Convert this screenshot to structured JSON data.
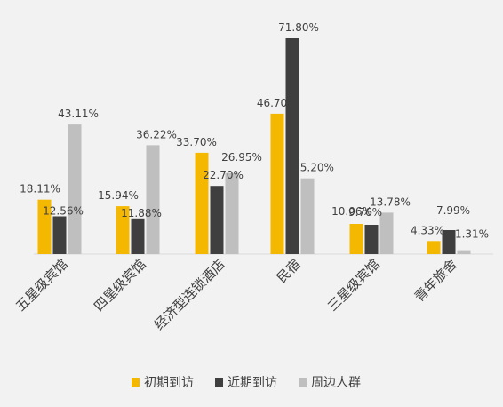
{
  "chart_data": {
    "type": "bar",
    "categories": [
      "五星级宾馆",
      "四星级宾馆",
      "经济型连锁酒店",
      "民宿",
      "三星级宾馆",
      "青年旅舍"
    ],
    "series": [
      {
        "name": "初期到访",
        "color": "#f5b800",
        "values": [
          18.11,
          15.94,
          33.7,
          46.7,
          10.06,
          4.33
        ],
        "labels": [
          "18.11%",
          "15.94%",
          "33.70%",
          "46.70",
          "10.06%",
          "4.33%"
        ]
      },
      {
        "name": "近期到访",
        "color": "#3f3f3f",
        "values": [
          12.56,
          11.88,
          22.7,
          71.8,
          9.76,
          7.99
        ],
        "labels": [
          "12.56%",
          "11.88%",
          "22.70%",
          "71.80%",
          "9.76%",
          "7.99%"
        ]
      },
      {
        "name": "周边人群",
        "color": "#bfbfbf",
        "values": [
          43.11,
          36.22,
          26.95,
          25.2,
          13.78,
          1.31
        ],
        "labels": [
          "43.11%",
          "36.22%",
          "26.95%",
          "25.20%",
          "13.78%",
          "1.31%"
        ]
      }
    ],
    "ylim": [
      0,
      75
    ],
    "grid": false,
    "legend_position": "bottom",
    "title": "",
    "xlabel": "",
    "ylabel": ""
  }
}
